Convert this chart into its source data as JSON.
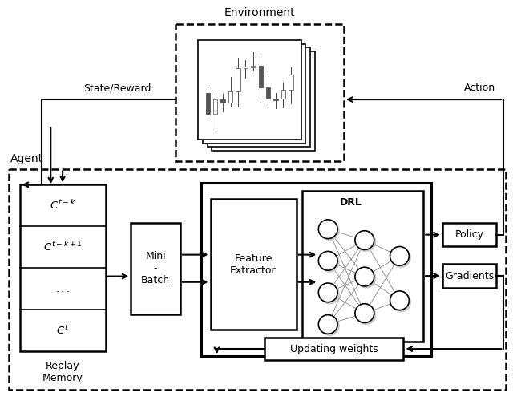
{
  "background": "#ffffff",
  "env_label": "Environment",
  "state_reward_label": "State/Reward",
  "action_label": "Action",
  "agent_label": "Agent",
  "replay_memory_label": "Replay\nMemory",
  "mini_batch_label": "Mini\n-\nBatch",
  "feature_extractor_label": "Feature\nExtractor",
  "drl_label": "DRL",
  "policy_label": "Policy",
  "gradients_label": "Gradients",
  "updating_weights_label": "Updating weights"
}
